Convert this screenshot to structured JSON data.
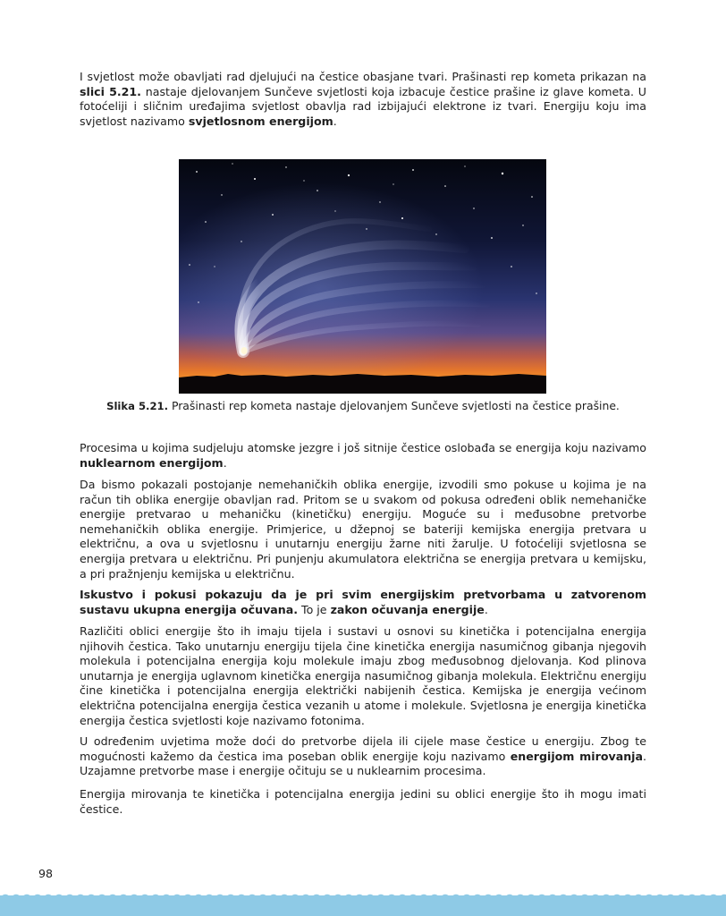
{
  "paragraph_1": {
    "text_1": "I svjetlost može obavljati rad djelujući na čestice obasjane tvari. Prašinasti rep kometa prikazan na ",
    "bold_1": "slici 5.21.",
    "text_2": " nastaje djelovanjem Sunčeve svjetlosti koja izbacuje čestice prašine iz glave kometa. U fotoćeliji i sličnim uređajima svjetlost obavlja rad izbijajući elektrone iz tvari. Energiju koju ima svjetlost nazivamo ",
    "bold_2": "svjetlosnom energijom",
    "text_3": "."
  },
  "figure": {
    "label": "Slika 5.21.",
    "caption": " Prašinasti rep kometa nastaje djelovanjem Sunčeve svjetlosti na čestice prašine."
  },
  "paragraph_2": {
    "text_1": "Procesima u kojima sudjeluju atomske jezgre i još sitnije čestice oslobađa se energija koju nazivamo ",
    "bold_1": "nuklearnom energijom",
    "text_2": "."
  },
  "paragraph_3": {
    "text": "Da bismo pokazali postojanje nemehaničkih oblika energije, izvodili smo pokuse u kojima je na račun tih oblika energije obavljan rad. Pritom se u svakom od pokusa određeni oblik nemehaničke energije pretvarao u mehaničku (kinetičku) energiju. Moguće su i međusobne pretvorbe nemehaničkih oblika energije. Primjerice, u džepnoj se bateriji kemijska energija pretvara u električnu, a ova u svjetlosnu i unutarnju energiju žarne niti žarulje. U fotoćeliji svjetlosna se energija pretvara u električnu. Pri punjenju akumulatora električna se energija pretvara u kemijsku, a pri pražnjenju kemijska u električnu."
  },
  "paragraph_4": {
    "bold_1": "Iskustvo i pokusi pokazuju da je pri svim energijskim pretvorbama u zatvorenom sustavu ukupna energija očuvana.",
    "text_1": " To je ",
    "bold_2": "zakon očuvanja energije",
    "text_2": "."
  },
  "paragraph_5": {
    "text": "Različiti oblici energije što ih imaju tijela i sustavi u osnovi su kinetička i potencijalna energija njihovih čestica. Tako unutarnju energiju tijela čine kinetička energija nasumičnog gibanja njegovih molekula i potencijalna energija koju molekule imaju zbog međusobnog djelovanja. Kod plinova unutarnja je energija uglavnom kinetička energija nasumičnog gibanja molekula. Električnu energiju čine kinetička i potencijalna energija električki nabijenih čestica. Kemijska je energija većinom električna potencijalna energija čestica vezanih u atome i molekule. Svjetlosna je energija kinetička energija čestica svjetlosti koje nazivamo fotonima."
  },
  "paragraph_6": {
    "text_1": "U određenim uvjetima može doći do pretvorbe dijela ili cijele mase čestice u energiju. Zbog te mogućnosti kažemo da čestica ima poseban oblik energije koju nazivamo ",
    "bold_1": "energijom mirovanja",
    "text_2": ". Uzajamne pretvorbe mase i energije očituju se u nuklearnim procesima."
  },
  "paragraph_7": {
    "text": "Energija mirovanja te kinetička i potencijalna energija jedini su oblici energije što ih mogu imati čestice."
  },
  "page_number": "98",
  "colors": {
    "text": "#1e1e1e",
    "bottom_band": "#8ecae6"
  }
}
